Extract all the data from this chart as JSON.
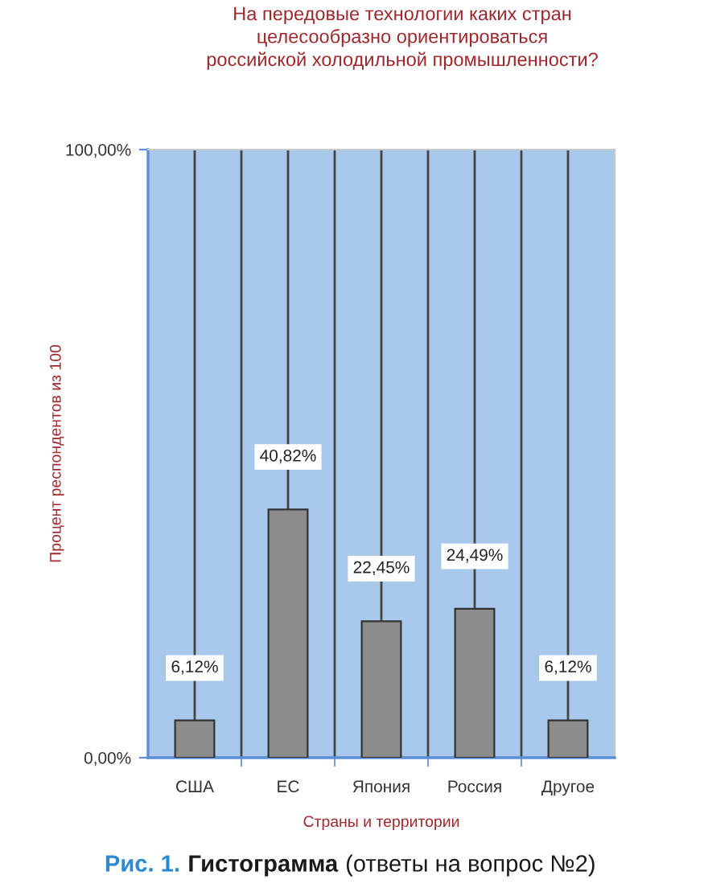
{
  "chart_data": {
    "type": "bar",
    "title": "На передовые технологии каких стран\nцелесообразно ориентироваться\nроссийской холодильной промышленности?",
    "ylabel": "Процент респондентов из 100",
    "xlabel": "Страны и территории",
    "categories": [
      "США",
      "ЕС",
      "Япония",
      "Россия",
      "Другое"
    ],
    "values": [
      6.12,
      40.82,
      22.45,
      24.49,
      6.12
    ],
    "value_labels": [
      "6,12%",
      "40,82%",
      "22,45%",
      "24,49%",
      "6,12%"
    ],
    "color": "#8c8c8c",
    "ylim": [
      0,
      100
    ],
    "yticks": [
      {
        "value": 0,
        "label": "0,00%"
      },
      {
        "value": 100,
        "label": "100,00%"
      }
    ],
    "grid": "x",
    "annotations": [
      "Рис. 1.",
      "Гистограмма",
      "(ответы на вопрос №2)"
    ]
  }
}
